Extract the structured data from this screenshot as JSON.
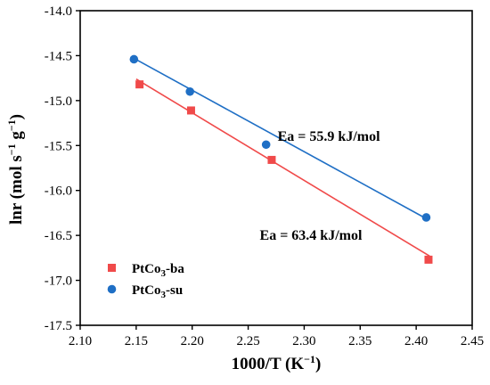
{
  "chart_data": {
    "type": "scatter",
    "title": "",
    "xlabel": {
      "main": "1000/T (K",
      "sup": "−1",
      "end": ")"
    },
    "ylabel": {
      "p1": "lnr (mol s",
      "sup1": "−1",
      "p2": " g",
      "sup2": "−1",
      "p3": ")"
    },
    "xlim": [
      2.1,
      2.45
    ],
    "ylim": [
      -17.5,
      -14.0
    ],
    "xticks": [
      "2.10",
      "2.15",
      "2.20",
      "2.25",
      "2.30",
      "2.35",
      "2.40",
      "2.45"
    ],
    "yticks": [
      "-14.0",
      "-14.5",
      "-15.0",
      "-15.5",
      "-16.0",
      "-16.5",
      "-17.0",
      "-17.5"
    ],
    "grid": false,
    "legend_position": "bottom-left",
    "series": [
      {
        "name": {
          "base": "PtCo",
          "sub": "3",
          "suffix": "-ba"
        },
        "marker": "square",
        "color": "#f04a4a",
        "points": [
          {
            "x": 2.153,
            "y": -14.82
          },
          {
            "x": 2.199,
            "y": -15.11
          },
          {
            "x": 2.271,
            "y": -15.66
          },
          {
            "x": 2.411,
            "y": -16.77
          }
        ],
        "fit": [
          {
            "x": 2.15,
            "y": -14.76
          },
          {
            "x": 2.412,
            "y": -16.73
          }
        ]
      },
      {
        "name": {
          "base": "PtCo",
          "sub": "3",
          "suffix": "-su"
        },
        "marker": "circle",
        "color": "#1f6fc5",
        "points": [
          {
            "x": 2.148,
            "y": -14.54
          },
          {
            "x": 2.198,
            "y": -14.9
          },
          {
            "x": 2.266,
            "y": -15.49
          },
          {
            "x": 2.409,
            "y": -16.3
          }
        ],
        "fit": [
          {
            "x": 2.148,
            "y": -14.53
          },
          {
            "x": 2.41,
            "y": -16.32
          }
        ]
      }
    ],
    "annotations": [
      {
        "text": "Ea = 55.9 kJ/mol",
        "x": 2.322,
        "y": -15.45
      },
      {
        "text": "Ea = 63.4 kJ/mol",
        "x": 2.306,
        "y": -16.55
      }
    ]
  }
}
